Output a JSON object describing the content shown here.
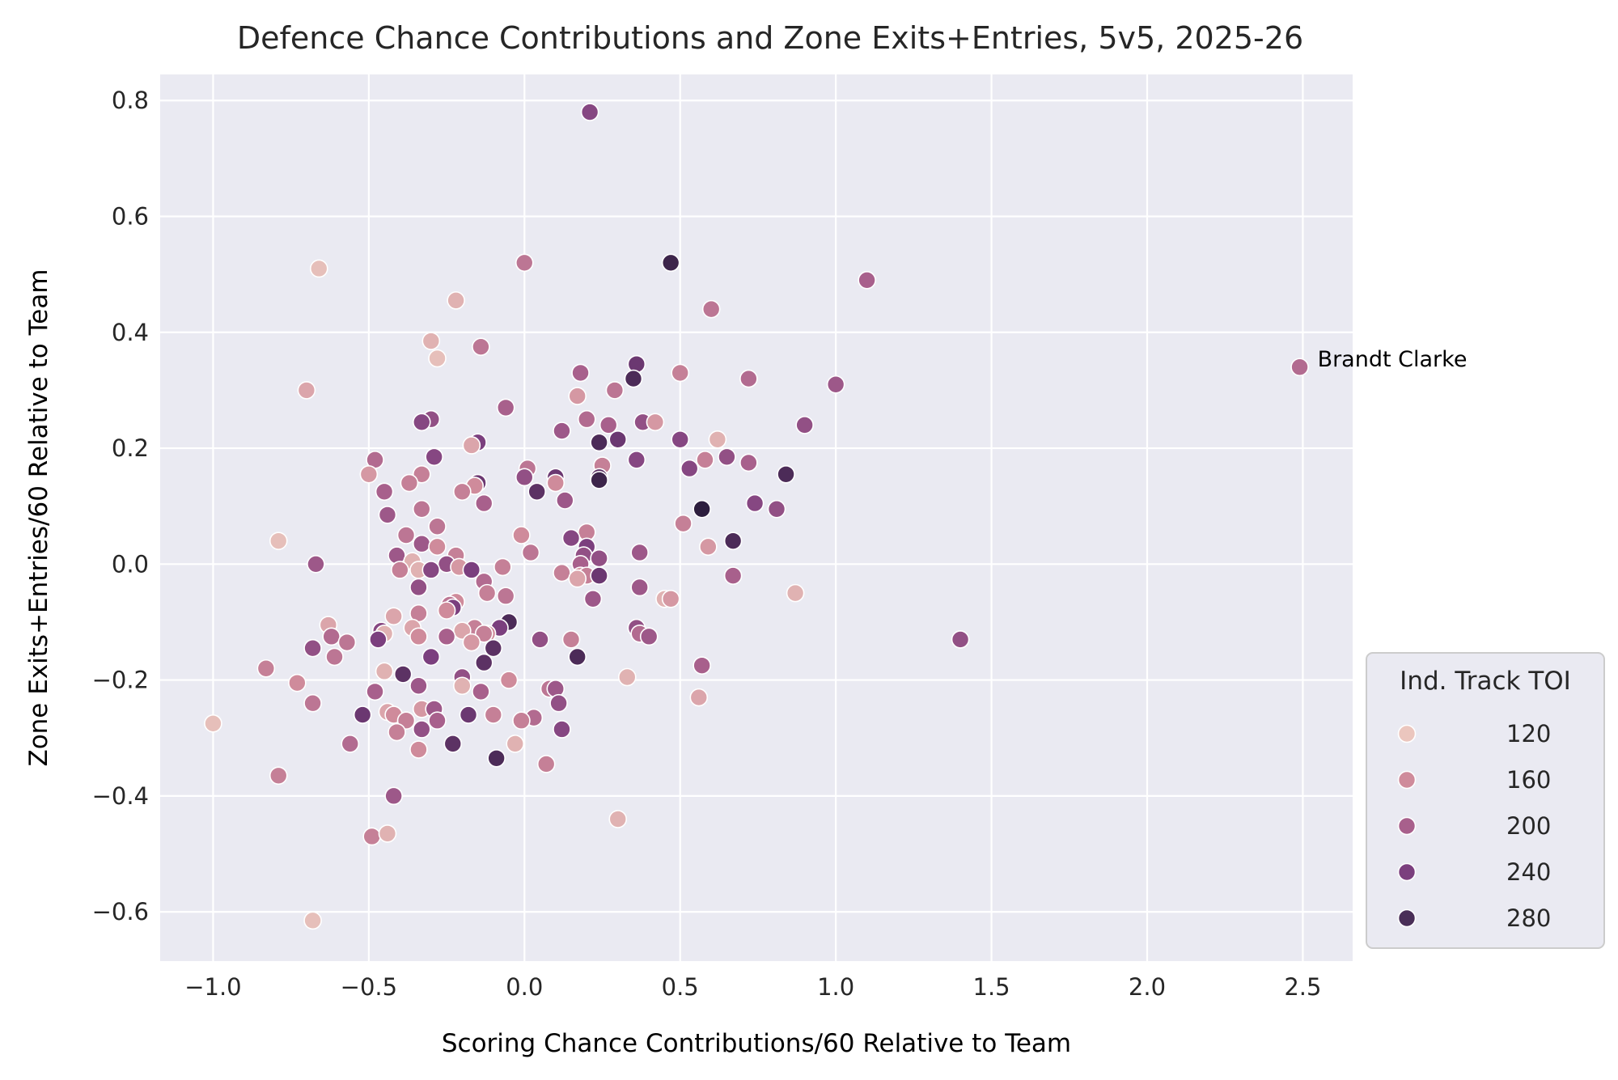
{
  "chart_data": {
    "type": "scatter",
    "title": "Defence Chance Contributions and Zone Exits+Entries, 5v5, 2025-26",
    "xlabel": "Scoring Chance Contributions/60 Relative to Team",
    "ylabel": "Zone Exits+Entries/60 Relative to Team",
    "xlim": [
      -1.17,
      2.66
    ],
    "ylim": [
      -0.685,
      0.845
    ],
    "xticks": [
      -1.0,
      -0.5,
      0.0,
      0.5,
      1.0,
      1.5,
      2.0,
      2.5
    ],
    "xtick_labels": [
      "−1.0",
      "−0.5",
      "0.0",
      "0.5",
      "1.0",
      "1.5",
      "2.0",
      "2.5"
    ],
    "yticks": [
      -0.6,
      -0.4,
      -0.2,
      0.0,
      0.2,
      0.4,
      0.6,
      0.8
    ],
    "ytick_labels": [
      "−0.6",
      "−0.4",
      "−0.2",
      "0.0",
      "0.2",
      "0.4",
      "0.6",
      "0.8"
    ],
    "grid": true,
    "hue": "Ind. Track TOI",
    "legend": {
      "title": "Ind. Track TOI",
      "placement": "outside-right-bottom",
      "entries": [
        {
          "label": "120",
          "color": "#ebc6be"
        },
        {
          "label": "160",
          "color": "#cf8b9b"
        },
        {
          "label": "200",
          "color": "#a8608c"
        },
        {
          "label": "240",
          "color": "#7b3f7e"
        },
        {
          "label": "280",
          "color": "#492e57"
        }
      ]
    },
    "annotations": [
      {
        "text": "Brandt Clarke",
        "x": 2.49,
        "y": 0.34
      }
    ],
    "points": [
      {
        "x": 0.21,
        "y": 0.78,
        "toi": 230
      },
      {
        "x": -0.66,
        "y": 0.51,
        "toi": 120
      },
      {
        "x": 0.0,
        "y": 0.52,
        "toi": 180
      },
      {
        "x": 0.47,
        "y": 0.52,
        "toi": 280
      },
      {
        "x": 1.1,
        "y": 0.49,
        "toi": 200
      },
      {
        "x": -0.22,
        "y": 0.455,
        "toi": 130
      },
      {
        "x": 0.6,
        "y": 0.44,
        "toi": 180
      },
      {
        "x": -0.3,
        "y": 0.385,
        "toi": 130
      },
      {
        "x": -0.14,
        "y": 0.375,
        "toi": 180
      },
      {
        "x": -0.28,
        "y": 0.355,
        "toi": 120
      },
      {
        "x": 2.49,
        "y": 0.34,
        "toi": 190
      },
      {
        "x": 0.36,
        "y": 0.345,
        "toi": 250
      },
      {
        "x": 0.35,
        "y": 0.32,
        "toi": 270
      },
      {
        "x": 0.18,
        "y": 0.33,
        "toi": 200
      },
      {
        "x": 0.5,
        "y": 0.33,
        "toi": 170
      },
      {
        "x": 0.72,
        "y": 0.32,
        "toi": 190
      },
      {
        "x": 1.0,
        "y": 0.31,
        "toi": 210
      },
      {
        "x": -0.7,
        "y": 0.3,
        "toi": 140
      },
      {
        "x": 0.29,
        "y": 0.3,
        "toi": 180
      },
      {
        "x": 0.17,
        "y": 0.29,
        "toi": 150
      },
      {
        "x": -0.06,
        "y": 0.27,
        "toi": 200
      },
      {
        "x": 0.2,
        "y": 0.25,
        "toi": 190
      },
      {
        "x": -0.3,
        "y": 0.25,
        "toi": 220
      },
      {
        "x": -0.33,
        "y": 0.245,
        "toi": 230
      },
      {
        "x": 0.27,
        "y": 0.24,
        "toi": 200
      },
      {
        "x": 0.38,
        "y": 0.245,
        "toi": 220
      },
      {
        "x": 0.42,
        "y": 0.245,
        "toi": 150
      },
      {
        "x": 0.9,
        "y": 0.24,
        "toi": 220
      },
      {
        "x": 0.12,
        "y": 0.23,
        "toi": 210
      },
      {
        "x": 0.62,
        "y": 0.215,
        "toi": 130
      },
      {
        "x": 0.5,
        "y": 0.215,
        "toi": 230
      },
      {
        "x": 0.3,
        "y": 0.215,
        "toi": 250
      },
      {
        "x": 0.24,
        "y": 0.21,
        "toi": 270
      },
      {
        "x": -0.15,
        "y": 0.21,
        "toi": 240
      },
      {
        "x": -0.17,
        "y": 0.205,
        "toi": 140
      },
      {
        "x": 0.58,
        "y": 0.18,
        "toi": 170
      },
      {
        "x": 0.65,
        "y": 0.185,
        "toi": 220
      },
      {
        "x": 0.36,
        "y": 0.18,
        "toi": 230
      },
      {
        "x": -0.29,
        "y": 0.185,
        "toi": 230
      },
      {
        "x": -0.48,
        "y": 0.18,
        "toi": 190
      },
      {
        "x": 0.72,
        "y": 0.175,
        "toi": 200
      },
      {
        "x": 0.25,
        "y": 0.17,
        "toi": 170
      },
      {
        "x": 0.01,
        "y": 0.165,
        "toi": 180
      },
      {
        "x": 0.53,
        "y": 0.165,
        "toi": 230
      },
      {
        "x": -0.33,
        "y": 0.155,
        "toi": 170
      },
      {
        "x": -0.5,
        "y": 0.155,
        "toi": 150
      },
      {
        "x": 0.84,
        "y": 0.155,
        "toi": 270
      },
      {
        "x": 0.0,
        "y": 0.15,
        "toi": 220
      },
      {
        "x": 0.1,
        "y": 0.15,
        "toi": 250
      },
      {
        "x": 0.24,
        "y": 0.15,
        "toi": 260
      },
      {
        "x": 0.24,
        "y": 0.145,
        "toi": 280
      },
      {
        "x": -0.37,
        "y": 0.14,
        "toi": 170
      },
      {
        "x": -0.15,
        "y": 0.14,
        "toi": 250
      },
      {
        "x": 0.1,
        "y": 0.14,
        "toi": 160
      },
      {
        "x": -0.16,
        "y": 0.135,
        "toi": 160
      },
      {
        "x": 0.04,
        "y": 0.125,
        "toi": 260
      },
      {
        "x": -0.2,
        "y": 0.125,
        "toi": 170
      },
      {
        "x": -0.45,
        "y": 0.125,
        "toi": 200
      },
      {
        "x": 0.13,
        "y": 0.11,
        "toi": 210
      },
      {
        "x": -0.13,
        "y": 0.105,
        "toi": 200
      },
      {
        "x": 0.74,
        "y": 0.105,
        "toi": 230
      },
      {
        "x": -0.33,
        "y": 0.095,
        "toi": 180
      },
      {
        "x": 0.57,
        "y": 0.095,
        "toi": 290
      },
      {
        "x": 0.81,
        "y": 0.095,
        "toi": 220
      },
      {
        "x": -0.44,
        "y": 0.085,
        "toi": 210
      },
      {
        "x": 0.51,
        "y": 0.07,
        "toi": 170
      },
      {
        "x": -0.28,
        "y": 0.065,
        "toi": 180
      },
      {
        "x": -0.38,
        "y": 0.05,
        "toi": 180
      },
      {
        "x": -0.01,
        "y": 0.05,
        "toi": 160
      },
      {
        "x": 0.2,
        "y": 0.055,
        "toi": 170
      },
      {
        "x": 0.15,
        "y": 0.045,
        "toi": 230
      },
      {
        "x": 0.67,
        "y": 0.04,
        "toi": 270
      },
      {
        "x": -0.79,
        "y": 0.04,
        "toi": 120
      },
      {
        "x": -0.33,
        "y": 0.035,
        "toi": 210
      },
      {
        "x": -0.28,
        "y": 0.03,
        "toi": 160
      },
      {
        "x": 0.59,
        "y": 0.03,
        "toi": 150
      },
      {
        "x": 0.2,
        "y": 0.03,
        "toi": 240
      },
      {
        "x": 0.02,
        "y": 0.02,
        "toi": 180
      },
      {
        "x": 0.37,
        "y": 0.02,
        "toi": 210
      },
      {
        "x": 0.19,
        "y": 0.015,
        "toi": 220
      },
      {
        "x": -0.41,
        "y": 0.015,
        "toi": 210
      },
      {
        "x": -0.22,
        "y": 0.015,
        "toi": 170
      },
      {
        "x": 0.24,
        "y": 0.01,
        "toi": 220
      },
      {
        "x": 0.18,
        "y": 0.0,
        "toi": 200
      },
      {
        "x": -0.36,
        "y": 0.005,
        "toi": 130
      },
      {
        "x": -0.25,
        "y": 0.0,
        "toi": 220
      },
      {
        "x": -0.67,
        "y": 0.0,
        "toi": 210
      },
      {
        "x": -0.21,
        "y": -0.005,
        "toi": 150
      },
      {
        "x": -0.34,
        "y": -0.01,
        "toi": 130
      },
      {
        "x": -0.4,
        "y": -0.01,
        "toi": 170
      },
      {
        "x": -0.3,
        "y": -0.01,
        "toi": 230
      },
      {
        "x": -0.17,
        "y": -0.01,
        "toi": 240
      },
      {
        "x": -0.07,
        "y": -0.005,
        "toi": 170
      },
      {
        "x": 0.18,
        "y": -0.02,
        "toi": 150
      },
      {
        "x": 0.2,
        "y": -0.02,
        "toi": 170
      },
      {
        "x": 0.24,
        "y": -0.02,
        "toi": 250
      },
      {
        "x": 0.12,
        "y": -0.015,
        "toi": 170
      },
      {
        "x": 0.67,
        "y": -0.02,
        "toi": 200
      },
      {
        "x": 0.17,
        "y": -0.025,
        "toi": 140
      },
      {
        "x": -0.13,
        "y": -0.03,
        "toi": 190
      },
      {
        "x": -0.34,
        "y": -0.04,
        "toi": 220
      },
      {
        "x": 0.37,
        "y": -0.04,
        "toi": 210
      },
      {
        "x": -0.12,
        "y": -0.05,
        "toi": 170
      },
      {
        "x": -0.06,
        "y": -0.055,
        "toi": 180
      },
      {
        "x": 0.87,
        "y": -0.05,
        "toi": 130
      },
      {
        "x": 0.45,
        "y": -0.06,
        "toi": 130
      },
      {
        "x": 0.47,
        "y": -0.06,
        "toi": 150
      },
      {
        "x": 0.22,
        "y": -0.06,
        "toi": 210
      },
      {
        "x": -0.22,
        "y": -0.065,
        "toi": 160
      },
      {
        "x": -0.24,
        "y": -0.07,
        "toi": 180
      },
      {
        "x": -0.23,
        "y": -0.075,
        "toi": 240
      },
      {
        "x": -0.25,
        "y": -0.08,
        "toi": 160
      },
      {
        "x": -0.34,
        "y": -0.085,
        "toi": 170
      },
      {
        "x": -0.42,
        "y": -0.09,
        "toi": 140
      },
      {
        "x": -0.05,
        "y": -0.1,
        "toi": 270
      },
      {
        "x": -0.63,
        "y": -0.105,
        "toi": 140
      },
      {
        "x": -0.36,
        "y": -0.11,
        "toi": 140
      },
      {
        "x": -0.16,
        "y": -0.11,
        "toi": 170
      },
      {
        "x": -0.2,
        "y": -0.115,
        "toi": 140
      },
      {
        "x": -0.08,
        "y": -0.11,
        "toi": 240
      },
      {
        "x": 0.36,
        "y": -0.11,
        "toi": 220
      },
      {
        "x": -0.46,
        "y": -0.115,
        "toi": 230
      },
      {
        "x": -0.45,
        "y": -0.12,
        "toi": 130
      },
      {
        "x": -0.12,
        "y": -0.12,
        "toi": 160
      },
      {
        "x": -0.13,
        "y": -0.12,
        "toi": 170
      },
      {
        "x": 0.37,
        "y": -0.12,
        "toi": 190
      },
      {
        "x": 0.4,
        "y": -0.125,
        "toi": 210
      },
      {
        "x": -0.62,
        "y": -0.125,
        "toi": 190
      },
      {
        "x": -0.34,
        "y": -0.125,
        "toi": 160
      },
      {
        "x": -0.25,
        "y": -0.125,
        "toi": 200
      },
      {
        "x": 0.05,
        "y": -0.13,
        "toi": 220
      },
      {
        "x": -0.47,
        "y": -0.13,
        "toi": 240
      },
      {
        "x": 1.4,
        "y": -0.13,
        "toi": 220
      },
      {
        "x": 0.15,
        "y": -0.13,
        "toi": 170
      },
      {
        "x": -0.57,
        "y": -0.135,
        "toi": 180
      },
      {
        "x": -0.17,
        "y": -0.135,
        "toi": 150
      },
      {
        "x": -0.1,
        "y": -0.145,
        "toi": 260
      },
      {
        "x": -0.68,
        "y": -0.145,
        "toi": 220
      },
      {
        "x": 0.17,
        "y": -0.16,
        "toi": 270
      },
      {
        "x": -0.3,
        "y": -0.16,
        "toi": 240
      },
      {
        "x": -0.61,
        "y": -0.16,
        "toi": 180
      },
      {
        "x": -0.13,
        "y": -0.17,
        "toi": 260
      },
      {
        "x": 0.57,
        "y": -0.175,
        "toi": 200
      },
      {
        "x": -0.83,
        "y": -0.18,
        "toi": 170
      },
      {
        "x": -0.45,
        "y": -0.185,
        "toi": 130
      },
      {
        "x": -0.39,
        "y": -0.19,
        "toi": 260
      },
      {
        "x": -0.2,
        "y": -0.195,
        "toi": 220
      },
      {
        "x": 0.33,
        "y": -0.195,
        "toi": 130
      },
      {
        "x": -0.05,
        "y": -0.2,
        "toi": 160
      },
      {
        "x": -0.73,
        "y": -0.205,
        "toi": 160
      },
      {
        "x": -0.34,
        "y": -0.21,
        "toi": 210
      },
      {
        "x": -0.2,
        "y": -0.21,
        "toi": 130
      },
      {
        "x": 0.08,
        "y": -0.215,
        "toi": 180
      },
      {
        "x": 0.1,
        "y": -0.215,
        "toi": 210
      },
      {
        "x": -0.48,
        "y": -0.22,
        "toi": 200
      },
      {
        "x": -0.14,
        "y": -0.22,
        "toi": 200
      },
      {
        "x": 0.56,
        "y": -0.23,
        "toi": 140
      },
      {
        "x": 0.11,
        "y": -0.24,
        "toi": 220
      },
      {
        "x": -0.68,
        "y": -0.24,
        "toi": 180
      },
      {
        "x": -0.33,
        "y": -0.25,
        "toi": 150
      },
      {
        "x": -0.29,
        "y": -0.25,
        "toi": 210
      },
      {
        "x": -0.44,
        "y": -0.255,
        "toi": 140
      },
      {
        "x": -0.52,
        "y": -0.26,
        "toi": 250
      },
      {
        "x": -0.42,
        "y": -0.26,
        "toi": 160
      },
      {
        "x": -0.18,
        "y": -0.26,
        "toi": 250
      },
      {
        "x": -0.1,
        "y": -0.26,
        "toi": 170
      },
      {
        "x": 0.03,
        "y": -0.265,
        "toi": 190
      },
      {
        "x": -0.38,
        "y": -0.27,
        "toi": 170
      },
      {
        "x": -0.28,
        "y": -0.27,
        "toi": 200
      },
      {
        "x": -0.01,
        "y": -0.27,
        "toi": 170
      },
      {
        "x": 0.12,
        "y": -0.285,
        "toi": 230
      },
      {
        "x": -0.33,
        "y": -0.285,
        "toi": 220
      },
      {
        "x": -0.41,
        "y": -0.29,
        "toi": 170
      },
      {
        "x": -0.56,
        "y": -0.31,
        "toi": 190
      },
      {
        "x": -0.23,
        "y": -0.31,
        "toi": 260
      },
      {
        "x": -0.03,
        "y": -0.31,
        "toi": 130
      },
      {
        "x": -0.34,
        "y": -0.32,
        "toi": 160
      },
      {
        "x": -0.09,
        "y": -0.335,
        "toi": 270
      },
      {
        "x": 0.07,
        "y": -0.345,
        "toi": 170
      },
      {
        "x": -0.79,
        "y": -0.365,
        "toi": 170
      },
      {
        "x": -0.42,
        "y": -0.4,
        "toi": 210
      },
      {
        "x": 0.3,
        "y": -0.44,
        "toi": 130
      },
      {
        "x": -0.49,
        "y": -0.47,
        "toi": 170
      },
      {
        "x": -0.44,
        "y": -0.465,
        "toi": 130
      },
      {
        "x": -1.0,
        "y": -0.275,
        "toi": 120
      },
      {
        "x": -0.68,
        "y": -0.615,
        "toi": 120
      }
    ]
  }
}
